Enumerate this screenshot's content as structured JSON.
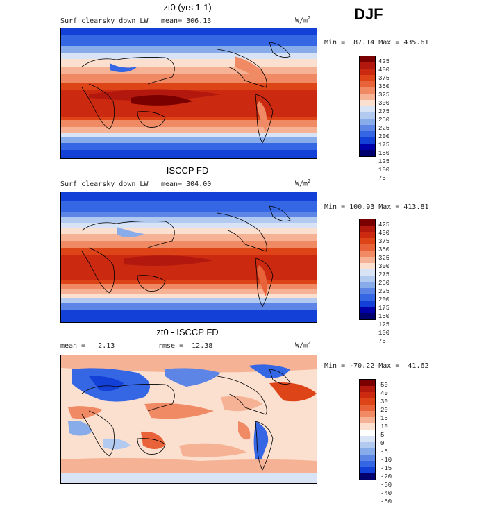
{
  "season": "DJF",
  "panels": [
    {
      "title": "zt0 (yrs 1-1)",
      "variable": "Surf clearsky down LW",
      "stat": "mean= 306.13",
      "unit": "W/m",
      "unit_exp": "2",
      "minmax": "Min =  87.14 Max = 435.61",
      "type": "field",
      "colorbar_labels": [
        "425",
        "400",
        "375",
        "350",
        "325",
        "300",
        "275",
        "250",
        "225",
        "200",
        "175",
        "150",
        "125",
        "100",
        "75"
      ]
    },
    {
      "title": "ISCCP FD",
      "variable": "Surf clearsky down LW",
      "stat": "mean= 304.00",
      "unit": "W/m",
      "unit_exp": "2",
      "minmax": "Min = 100.93 Max = 413.81",
      "type": "field",
      "colorbar_labels": [
        "425",
        "400",
        "375",
        "350",
        "325",
        "300",
        "275",
        "250",
        "225",
        "200",
        "175",
        "150",
        "125",
        "100",
        "75"
      ]
    },
    {
      "title": "zt0 - ISCCP FD",
      "variable": "mean =   2.13",
      "stat": "rmse =  12.38",
      "unit": "W/m",
      "unit_exp": "2",
      "minmax": "Min = -70.22 Max =  41.62",
      "type": "diff",
      "colorbar_labels": [
        "50",
        "40",
        "30",
        "20",
        "15",
        "10",
        "5",
        "0",
        "-5",
        "-10",
        "-15",
        "-20",
        "-30",
        "-40",
        "-50"
      ]
    }
  ],
  "colors": {
    "field_scale": [
      "#7a0000",
      "#b2180e",
      "#cc2a10",
      "#dd4418",
      "#e8623a",
      "#f08a64",
      "#f6b295",
      "#fbe0d0",
      "#d8e4f6",
      "#b3caf0",
      "#88abea",
      "#5c85e6",
      "#3566e4",
      "#1340d6",
      "#0000a8",
      "#00006e"
    ],
    "diff_scale": [
      "#7a0000",
      "#b2180e",
      "#cc2a10",
      "#dd4418",
      "#e8623a",
      "#f08a64",
      "#f6b295",
      "#fbe0d0",
      "#ffffff",
      "#d8e4f6",
      "#b3caf0",
      "#88abea",
      "#5c85e6",
      "#3566e4",
      "#1340d6",
      "#00006e"
    ]
  }
}
